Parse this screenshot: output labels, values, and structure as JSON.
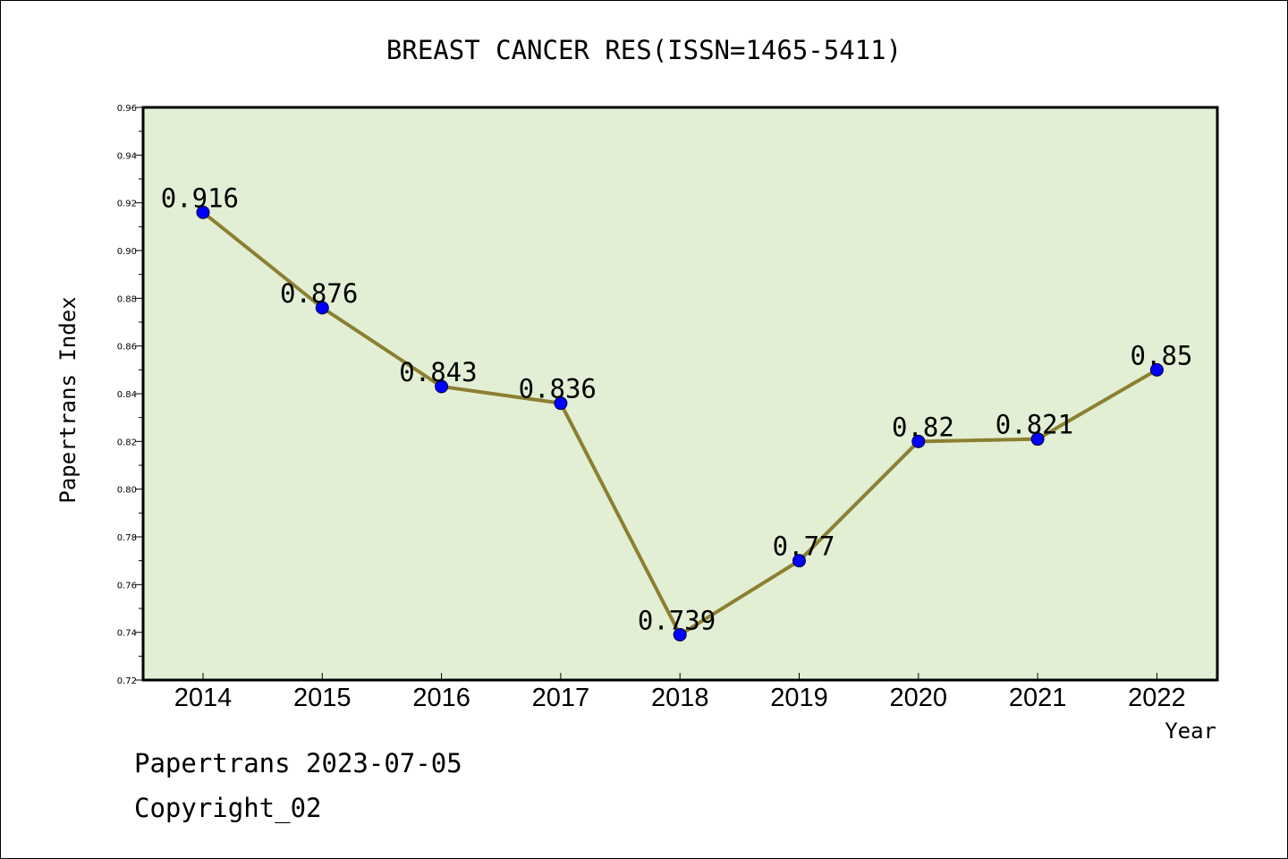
{
  "chart_data": {
    "type": "line",
    "title": "BREAST CANCER RES(ISSN=1465-5411)",
    "xlabel": "Year",
    "ylabel": "Papertrans Index",
    "categories": [
      "2014",
      "2015",
      "2016",
      "2017",
      "2018",
      "2019",
      "2020",
      "2021",
      "2022"
    ],
    "series": [
      {
        "values": [
          0.916,
          0.876,
          0.843,
          0.836,
          0.739,
          0.77,
          0.82,
          0.821,
          0.85
        ],
        "labels": [
          "0.916",
          "0.876",
          "0.843",
          "0.836",
          "0.739",
          "0.77",
          "0.82",
          "0.821",
          "0.85"
        ]
      }
    ],
    "ylim": [
      0.72,
      0.96
    ],
    "yticks": [
      "0.72",
      "0.74",
      "0.76",
      "0.78",
      "0.80",
      "0.82",
      "0.84",
      "0.86",
      "0.88",
      "0.90",
      "0.92",
      "0.94",
      "0.96"
    ],
    "grid": false,
    "colors": {
      "plot_bg": "#e2efd4",
      "line": "#8c7f32",
      "marker": "#0000ff"
    }
  },
  "footer": {
    "date_line": "Papertrans 2023-07-05",
    "copyright": "Copyright_02"
  }
}
